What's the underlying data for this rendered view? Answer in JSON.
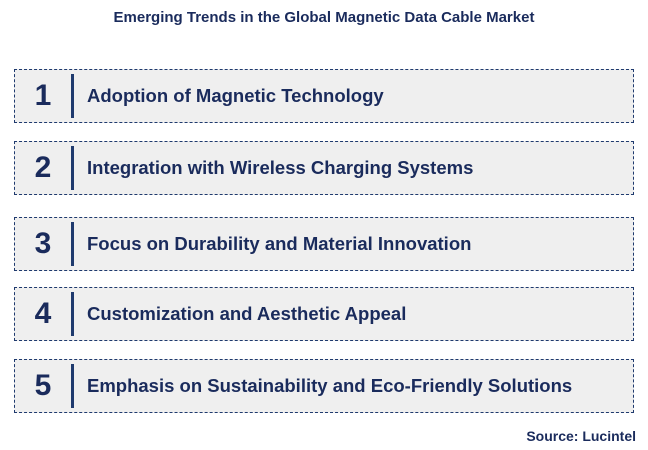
{
  "title": "Emerging Trends in the Global Magnetic Data Cable Market",
  "items": [
    {
      "number": "1",
      "label": "Adoption of Magnetic Technology"
    },
    {
      "number": "2",
      "label": "Integration with Wireless Charging Systems"
    },
    {
      "number": "3",
      "label": "Focus on Durability and Material Innovation"
    },
    {
      "number": "4",
      "label": "Customization and Aesthetic Appeal"
    },
    {
      "number": "5",
      "label": "Emphasis on Sustainability and Eco-Friendly Solutions"
    }
  ],
  "source": "Source: Lucintel"
}
